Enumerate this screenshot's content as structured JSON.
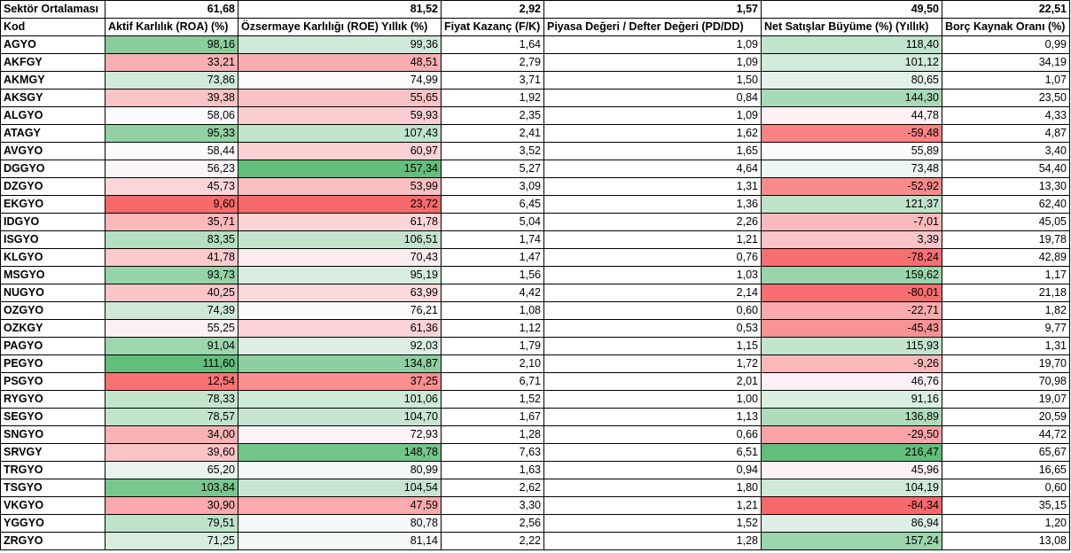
{
  "average_row": {
    "label": "Sektör Ortalaması",
    "values": [
      "61,68",
      "81,52",
      "2,92",
      "1,57",
      "49,50",
      "22,51"
    ]
  },
  "columns": [
    "Kod",
    "Aktif Karlılık (ROA) (%)",
    "Özsermaye Karlılığı (ROE) Yıllık (%)",
    "Fiyat Kazanç (F/K)",
    "Piyasa Değeri / Defter Değeri (PD/DD)",
    "Net Satışlar Büyüme (%) (Yıllık)",
    "Borç Kaynak Oranı (%)"
  ],
  "rows": [
    {
      "code": "AGYO",
      "v": [
        "98,16",
        "99,36",
        "1,64",
        "1,09",
        "118,40",
        "0,99"
      ]
    },
    {
      "code": "AKFGY",
      "v": [
        "33,21",
        "48,51",
        "2,79",
        "1,09",
        "101,12",
        "34,19"
      ]
    },
    {
      "code": "AKMGY",
      "v": [
        "73,86",
        "74,99",
        "3,71",
        "1,50",
        "80,65",
        "1,07"
      ]
    },
    {
      "code": "AKSGY",
      "v": [
        "39,38",
        "55,65",
        "1,92",
        "0,84",
        "144,30",
        "23,50"
      ]
    },
    {
      "code": "ALGYO",
      "v": [
        "58,06",
        "59,93",
        "2,35",
        "1,09",
        "44,78",
        "4,33"
      ]
    },
    {
      "code": "ATAGY",
      "v": [
        "95,33",
        "107,43",
        "2,41",
        "1,62",
        "-59,48",
        "4,87"
      ]
    },
    {
      "code": "AVGYO",
      "v": [
        "58,44",
        "60,97",
        "3,52",
        "1,65",
        "55,89",
        "3,40"
      ]
    },
    {
      "code": "DGGYO",
      "v": [
        "56,23",
        "157,34",
        "5,27",
        "4,64",
        "73,48",
        "54,40"
      ]
    },
    {
      "code": "DZGYO",
      "v": [
        "45,73",
        "53,99",
        "3,09",
        "1,31",
        "-52,92",
        "13,30"
      ]
    },
    {
      "code": "EKGYO",
      "v": [
        "9,60",
        "23,72",
        "6,45",
        "1,36",
        "121,37",
        "62,40"
      ]
    },
    {
      "code": "IDGYO",
      "v": [
        "35,71",
        "61,78",
        "5,04",
        "2,26",
        "-7,01",
        "45,05"
      ]
    },
    {
      "code": "ISGYO",
      "v": [
        "83,35",
        "106,51",
        "1,74",
        "1,21",
        "3,39",
        "19,78"
      ]
    },
    {
      "code": "KLGYO",
      "v": [
        "41,78",
        "70,43",
        "1,47",
        "0,76",
        "-78,24",
        "42,89"
      ]
    },
    {
      "code": "MSGYO",
      "v": [
        "93,73",
        "95,19",
        "1,56",
        "1,03",
        "159,62",
        "1,17"
      ]
    },
    {
      "code": "NUGYO",
      "v": [
        "40,25",
        "63,99",
        "4,42",
        "2,14",
        "-80,01",
        "21,18"
      ]
    },
    {
      "code": "OZGYO",
      "v": [
        "74,39",
        "76,21",
        "1,08",
        "0,60",
        "-22,71",
        "1,82"
      ]
    },
    {
      "code": "OZKGY",
      "v": [
        "55,25",
        "61,36",
        "1,12",
        "0,53",
        "-45,43",
        "9,77"
      ]
    },
    {
      "code": "PAGYO",
      "v": [
        "91,04",
        "92,03",
        "1,79",
        "1,15",
        "115,93",
        "1,31"
      ]
    },
    {
      "code": "PEGYO",
      "v": [
        "111,60",
        "134,87",
        "2,10",
        "1,72",
        "-9,26",
        "19,70"
      ]
    },
    {
      "code": "PSGYO",
      "v": [
        "12,54",
        "37,25",
        "6,71",
        "2,01",
        "46,76",
        "70,98"
      ]
    },
    {
      "code": "RYGYO",
      "v": [
        "78,33",
        "101,06",
        "1,52",
        "1,00",
        "91,16",
        "19,07"
      ]
    },
    {
      "code": "SEGYO",
      "v": [
        "78,57",
        "104,70",
        "1,67",
        "1,13",
        "136,89",
        "20,59"
      ]
    },
    {
      "code": "SNGYO",
      "v": [
        "34,00",
        "72,93",
        "1,28",
        "0,66",
        "-29,50",
        "44,72"
      ]
    },
    {
      "code": "SRVGY",
      "v": [
        "39,60",
        "148,78",
        "7,63",
        "6,51",
        "216,47",
        "65,67"
      ]
    },
    {
      "code": "TRGYO",
      "v": [
        "65,20",
        "80,99",
        "1,63",
        "0,94",
        "45,96",
        "16,65"
      ]
    },
    {
      "code": "TSGYO",
      "v": [
        "103,84",
        "104,54",
        "2,62",
        "1,80",
        "104,19",
        "0,60"
      ]
    },
    {
      "code": "VKGYO",
      "v": [
        "30,90",
        "47,59",
        "3,30",
        "1,21",
        "-84,34",
        "35,15"
      ]
    },
    {
      "code": "YGGYO",
      "v": [
        "79,51",
        "80,78",
        "2,56",
        "1,52",
        "86,94",
        "1,20"
      ]
    },
    {
      "code": "ZRGYO",
      "v": [
        "71,25",
        "81,14",
        "2,22",
        "1,28",
        "157,24",
        "13,08"
      ]
    }
  ],
  "colors": {
    "red_strong": "#f8696b",
    "neutral": "#fcfcff",
    "green_strong": "#63be7b"
  },
  "color_scaled_columns": [
    1,
    2,
    5
  ]
}
